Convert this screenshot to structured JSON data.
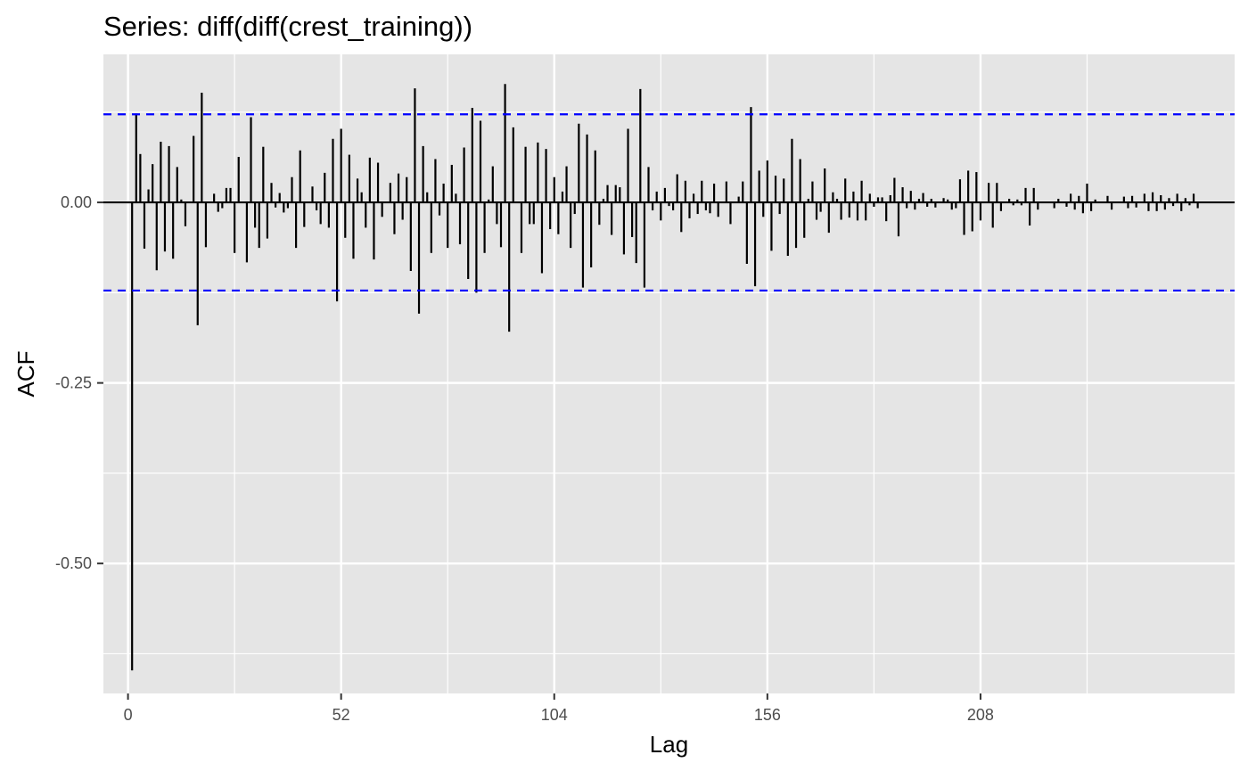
{
  "chart_data": {
    "type": "bar",
    "title": "Series: diff(diff(crest_training))",
    "xlabel": "Lag",
    "ylabel": "ACF",
    "xlim": [
      -6,
      270
    ],
    "ylim": [
      -0.68,
      0.205
    ],
    "x_ticks": [
      0,
      52,
      104,
      156,
      208
    ],
    "x_tick_labels": [
      "0",
      "52",
      "104",
      "156",
      "208"
    ],
    "y_ticks": [
      0.0,
      -0.25,
      -0.5
    ],
    "y_tick_labels": [
      "0.00",
      "-0.25",
      "-0.50"
    ],
    "confidence_bound": 0.122,
    "grid": true,
    "colors": {
      "panel": "#e5e5e5",
      "grid": "#ffffff",
      "bars": "#000000",
      "bounds": "#0000ff",
      "zero_line": "#000000"
    },
    "lags": [
      1,
      2,
      3,
      4,
      5,
      6,
      7,
      8,
      9,
      10,
      11,
      12,
      13,
      14,
      15,
      16,
      17,
      18,
      19,
      20,
      21,
      22,
      23,
      24,
      25,
      26,
      27,
      28,
      29,
      30,
      31,
      32,
      33,
      34,
      35,
      36,
      37,
      38,
      39,
      40,
      41,
      42,
      43,
      44,
      45,
      46,
      47,
      48,
      49,
      50,
      51,
      52,
      53,
      54,
      55,
      56,
      57,
      58,
      59,
      60,
      61,
      62,
      63,
      64,
      65,
      66,
      67,
      68,
      69,
      70,
      71,
      72,
      73,
      74,
      75,
      76,
      77,
      78,
      79,
      80,
      81,
      82,
      83,
      84,
      85,
      86,
      87,
      88,
      89,
      90,
      91,
      92,
      93,
      94,
      95,
      96,
      97,
      98,
      99,
      100,
      101,
      102,
      103,
      104,
      105,
      106,
      107,
      108,
      109,
      110,
      111,
      112,
      113,
      114,
      115,
      116,
      117,
      118,
      119,
      120,
      121,
      122,
      123,
      124,
      125,
      126,
      127,
      128,
      129,
      130,
      131,
      132,
      133,
      134,
      135,
      136,
      137,
      138,
      139,
      140,
      141,
      142,
      143,
      144,
      145,
      146,
      147,
      148,
      149,
      150,
      151,
      152,
      153,
      154,
      155,
      156,
      157,
      158,
      159,
      160,
      161,
      162,
      163,
      164,
      165,
      166,
      167,
      168,
      169,
      170,
      171,
      172,
      173,
      174,
      175,
      176,
      177,
      178,
      179,
      180,
      181,
      182,
      183,
      184,
      185,
      186,
      187,
      188,
      189,
      190,
      191,
      192,
      193,
      194,
      195,
      196,
      197,
      198,
      199,
      200,
      201,
      202,
      203,
      204,
      205,
      206,
      207,
      208,
      209,
      210,
      211,
      212,
      213,
      214,
      215,
      216,
      217,
      218,
      219,
      220,
      221,
      222,
      223,
      224,
      225,
      226,
      227,
      228,
      229,
      230,
      231,
      232,
      233,
      234,
      235,
      236,
      237,
      238,
      239,
      240,
      241,
      242,
      243,
      244,
      245,
      246,
      247,
      248,
      249,
      250,
      251,
      252,
      253,
      254,
      255,
      256,
      257,
      258,
      259,
      260,
      261,
      262,
      263
    ],
    "acf": [
      -0.648,
      0.123,
      0.067,
      -0.064,
      0.018,
      0.053,
      -0.094,
      0.084,
      -0.068,
      0.078,
      -0.078,
      0.049,
      0.004,
      -0.033,
      0.0,
      0.092,
      -0.17,
      0.152,
      -0.062,
      0.0,
      0.012,
      -0.013,
      -0.008,
      0.02,
      0.02,
      -0.07,
      0.063,
      0.0,
      -0.083,
      0.118,
      -0.035,
      -0.063,
      0.077,
      -0.05,
      0.027,
      -0.007,
      0.013,
      -0.014,
      -0.008,
      0.035,
      -0.063,
      0.072,
      -0.034,
      0.0,
      0.022,
      -0.011,
      -0.03,
      0.041,
      -0.035,
      0.088,
      -0.137,
      0.102,
      -0.049,
      0.066,
      -0.078,
      0.033,
      0.014,
      -0.035,
      0.062,
      -0.079,
      0.055,
      -0.02,
      0.0,
      0.027,
      -0.044,
      0.04,
      -0.024,
      0.035,
      -0.095,
      0.158,
      -0.154,
      0.078,
      0.014,
      -0.07,
      0.06,
      -0.018,
      0.026,
      -0.063,
      0.052,
      0.012,
      -0.058,
      0.076,
      -0.106,
      0.131,
      -0.125,
      0.113,
      -0.07,
      0.004,
      0.05,
      -0.03,
      -0.062,
      0.164,
      -0.179,
      0.104,
      0.0,
      -0.07,
      0.077,
      -0.03,
      -0.03,
      0.083,
      -0.098,
      0.074,
      -0.037,
      0.035,
      -0.044,
      0.015,
      0.05,
      -0.063,
      -0.016,
      0.109,
      -0.118,
      0.094,
      -0.09,
      0.072,
      -0.031,
      0.005,
      0.024,
      -0.045,
      0.024,
      0.021,
      -0.072,
      0.102,
      -0.048,
      -0.084,
      0.157,
      -0.118,
      0.049,
      -0.011,
      0.015,
      -0.025,
      0.02,
      -0.005,
      -0.011,
      0.039,
      -0.041,
      0.03,
      -0.022,
      0.012,
      -0.016,
      0.03,
      -0.011,
      -0.015,
      0.026,
      -0.02,
      0.0,
      0.029,
      -0.03,
      0.0,
      0.008,
      0.029,
      -0.085,
      0.132,
      -0.116,
      0.044,
      -0.02,
      0.058,
      -0.067,
      0.037,
      -0.016,
      0.033,
      -0.074,
      0.088,
      -0.063,
      0.06,
      -0.049,
      0.005,
      0.029,
      -0.024,
      -0.013,
      0.047,
      -0.042,
      0.014,
      0.005,
      -0.024,
      0.033,
      -0.021,
      0.015,
      -0.025,
      0.03,
      -0.025,
      0.012,
      -0.006,
      0.007,
      0.007,
      -0.026,
      0.01,
      0.034,
      -0.047,
      0.021,
      -0.008,
      0.016,
      -0.01,
      0.005,
      0.013,
      -0.006,
      0.005,
      -0.007,
      0.0,
      0.006,
      0.004,
      -0.01,
      -0.008,
      0.032,
      -0.045,
      0.044,
      -0.04,
      0.042,
      -0.025,
      0.0,
      0.027,
      -0.035,
      0.027,
      -0.012,
      0.0,
      0.005,
      -0.004,
      0.004,
      -0.004,
      0.02,
      -0.032,
      0.02,
      -0.01,
      0.0,
      0.0,
      0.0,
      -0.008,
      0.005,
      0.0,
      -0.006,
      0.012,
      -0.01,
      0.009,
      -0.015,
      0.026,
      -0.012,
      0.004,
      0.0,
      0.0,
      0.009,
      -0.01,
      0.0,
      0.0,
      0.008,
      -0.008,
      0.009,
      -0.007,
      0.0,
      0.012,
      -0.012,
      0.014,
      -0.012,
      0.01,
      -0.01,
      0.006,
      -0.005,
      0.012,
      -0.012,
      0.006,
      -0.004,
      0.012,
      -0.008
    ]
  }
}
